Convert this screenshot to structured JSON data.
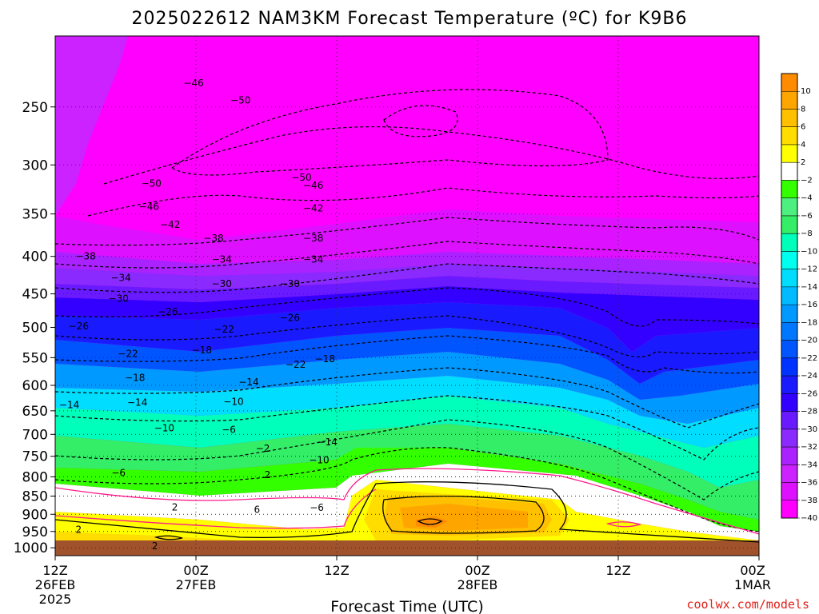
{
  "title": "2025022612 NAM3KM Forecast Temperature (ºC) for K9B6",
  "xlabel": "Forecast Time (UTC)",
  "credit": "coolwx.com/models",
  "chart_data": {
    "type": "heatmap",
    "title": "2025022612 NAM3KM Forecast Temperature (ºC) for K9B6",
    "xlabel": "Forecast Time (UTC)",
    "ylabel": "",
    "y_axis": {
      "ticks": [
        250,
        300,
        350,
        400,
        450,
        500,
        550,
        600,
        650,
        700,
        750,
        800,
        850,
        900,
        950,
        1000
      ],
      "range": [
        200,
        1025
      ],
      "scale": "log-pressure",
      "inverted": true
    },
    "x_axis": {
      "ticks": [
        {
          "hour": 0,
          "lines": [
            "12Z",
            "26FEB",
            "2025"
          ]
        },
        {
          "hour": 12,
          "lines": [
            "00Z",
            "27FEB"
          ]
        },
        {
          "hour": 24,
          "lines": [
            "12Z"
          ]
        },
        {
          "hour": 36,
          "lines": [
            "00Z",
            "28FEB"
          ]
        },
        {
          "hour": 48,
          "lines": [
            "12Z"
          ]
        },
        {
          "hour": 60,
          "lines": [
            "00Z",
            "1MAR"
          ]
        }
      ],
      "range_hours": [
        0,
        60
      ]
    },
    "colorbar": {
      "levels": [
        10,
        8,
        6,
        4,
        2,
        -2,
        -4,
        -6,
        -8,
        -10,
        -12,
        -14,
        -16,
        -18,
        -20,
        -22,
        -24,
        -26,
        -28,
        -30,
        -32,
        -34,
        -36,
        -38,
        -40
      ],
      "colors": [
        "#ff8c00",
        "#ffa500",
        "#ffc000",
        "#ffdd00",
        "#ffff00",
        "#ffffff",
        "#33ff00",
        "#4df080",
        "#33ee66",
        "#00ffbb",
        "#00ffee",
        "#00ddff",
        "#00bbff",
        "#0099ff",
        "#0077ff",
        "#0055ff",
        "#0033ff",
        "#1a1aff",
        "#3300ff",
        "#6a1aff",
        "#8a2aff",
        "#aa22ff",
        "#cc22ff",
        "#dd11ff",
        "#ff00ff"
      ]
    },
    "contour_labels": [
      {
        "value": "-46",
        "hour": 11.8,
        "p": 232
      },
      {
        "value": "-50",
        "hour": 15.8,
        "p": 245
      },
      {
        "value": "-50",
        "hour": 8.2,
        "p": 318
      },
      {
        "value": "-46",
        "hour": 8.0,
        "p": 342
      },
      {
        "value": "-42",
        "hour": 9.8,
        "p": 362
      },
      {
        "value": "-38",
        "hour": 2.6,
        "p": 400
      },
      {
        "value": "-38",
        "hour": 13.5,
        "p": 378
      },
      {
        "value": "-34",
        "hour": 5.6,
        "p": 428
      },
      {
        "value": "-34",
        "hour": 14.2,
        "p": 404
      },
      {
        "value": "-30",
        "hour": 5.4,
        "p": 457
      },
      {
        "value": "-30",
        "hour": 14.2,
        "p": 436
      },
      {
        "value": "-26",
        "hour": 2.0,
        "p": 498
      },
      {
        "value": "-26",
        "hour": 9.6,
        "p": 476
      },
      {
        "value": "-22",
        "hour": 6.2,
        "p": 543
      },
      {
        "value": "-22",
        "hour": 14.4,
        "p": 503
      },
      {
        "value": "-18",
        "hour": 6.8,
        "p": 586
      },
      {
        "value": "-18",
        "hour": 12.5,
        "p": 537
      },
      {
        "value": "-14",
        "hour": 1.2,
        "p": 638
      },
      {
        "value": "-14",
        "hour": 7.0,
        "p": 633
      },
      {
        "value": "-14",
        "hour": 16.5,
        "p": 594
      },
      {
        "value": "-10",
        "hour": 9.3,
        "p": 686
      },
      {
        "value": "-10",
        "hour": 15.2,
        "p": 632
      },
      {
        "value": "-6",
        "hour": 5.4,
        "p": 790
      },
      {
        "value": "-6",
        "hour": 14.8,
        "p": 690
      },
      {
        "value": "-2",
        "hour": 17.7,
        "p": 732
      },
      {
        "value": "2",
        "hour": 10.2,
        "p": 880
      },
      {
        "value": "2",
        "hour": 2.0,
        "p": 945
      },
      {
        "value": "2",
        "hour": 8.5,
        "p": 995
      },
      {
        "value": "2",
        "hour": 18.1,
        "p": 795
      },
      {
        "value": "6",
        "hour": 17.2,
        "p": 887
      },
      {
        "value": "-50",
        "hour": 21.0,
        "p": 312
      },
      {
        "value": "-46",
        "hour": 22.0,
        "p": 320
      },
      {
        "value": "-42",
        "hour": 22.0,
        "p": 344
      },
      {
        "value": "-38",
        "hour": 22.0,
        "p": 378
      },
      {
        "value": "-34",
        "hour": 22.0,
        "p": 404
      },
      {
        "value": "-30",
        "hour": 20.0,
        "p": 436
      },
      {
        "value": "-26",
        "hour": 20.0,
        "p": 485
      },
      {
        "value": "-22",
        "hour": 20.5,
        "p": 562
      },
      {
        "value": "-18",
        "hour": 23.0,
        "p": 552
      },
      {
        "value": "-14",
        "hour": 23.2,
        "p": 717
      },
      {
        "value": "-10",
        "hour": 22.5,
        "p": 759
      },
      {
        "value": "-6",
        "hour": 22.3,
        "p": 882
      }
    ]
  }
}
